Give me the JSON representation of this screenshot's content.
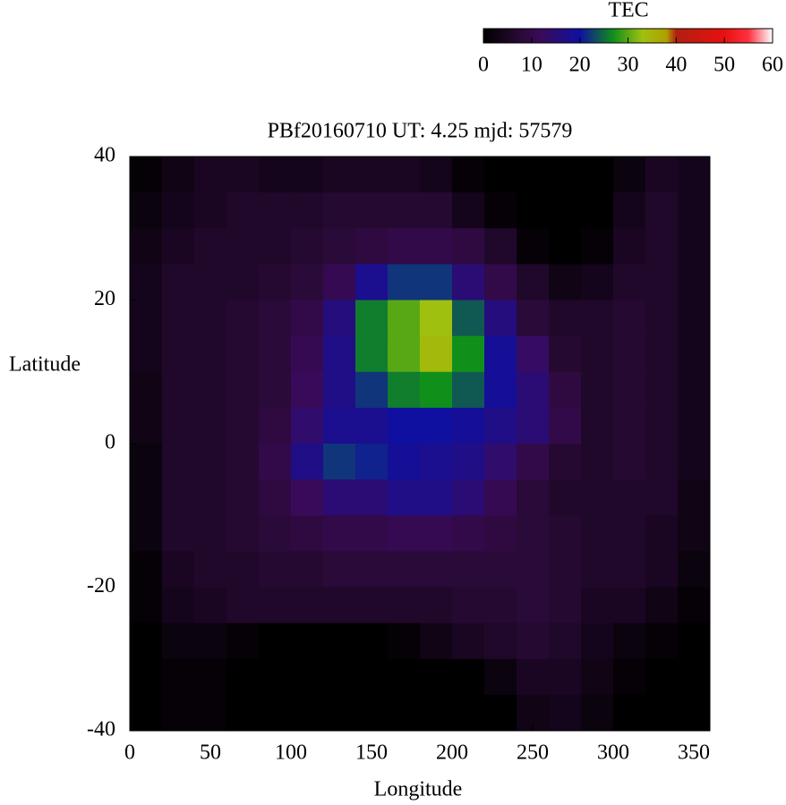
{
  "chart_data": {
    "type": "heatmap",
    "title": "PBf20160710  UT: 4.25  mjd: 57579",
    "xlabel": "Longitude",
    "ylabel": "Latitude",
    "colorbar_label": "TEC",
    "xlim": [
      0,
      360
    ],
    "xticks": [
      0,
      50,
      100,
      150,
      200,
      250,
      300,
      350
    ],
    "ylim": [
      -40,
      40
    ],
    "yticks": [
      -40,
      -20,
      0,
      20,
      40
    ],
    "clim": [
      0,
      60
    ],
    "cticks": [
      0,
      10,
      20,
      30,
      40,
      50,
      60
    ],
    "palette": [
      [
        0,
        "#000000"
      ],
      [
        8,
        "#2a0a38"
      ],
      [
        12,
        "#3a0a5a"
      ],
      [
        20,
        "#1010a0"
      ],
      [
        27,
        "#10901a"
      ],
      [
        33,
        "#a0c010"
      ],
      [
        38,
        "#b0a000"
      ],
      [
        40,
        "#b02010"
      ],
      [
        50,
        "#e81010"
      ],
      [
        55,
        "#ff3040"
      ],
      [
        60,
        "#ffffff"
      ]
    ],
    "x": [
      10,
      30,
      50,
      70,
      90,
      110,
      130,
      150,
      170,
      190,
      210,
      230,
      250,
      270,
      290,
      310,
      330,
      350
    ],
    "y": [
      37.5,
      32.5,
      27.5,
      22.5,
      17.5,
      12.5,
      7.5,
      2.5,
      -2.5,
      -7.5,
      -12.5,
      -17.5,
      -22.5,
      -27.5,
      -32.5,
      -37.5
    ],
    "z": [
      [
        1,
        3,
        5,
        5,
        4,
        4,
        5,
        5,
        5,
        4,
        1,
        0,
        0,
        0,
        0,
        2,
        5,
        4
      ],
      [
        2,
        4,
        5,
        6,
        6,
        6,
        7,
        7,
        7,
        7,
        4,
        1,
        0,
        0,
        0,
        4,
        6,
        4
      ],
      [
        3,
        5,
        6,
        6,
        6,
        7,
        8,
        9,
        10,
        10,
        9,
        6,
        1,
        0,
        1,
        5,
        6,
        4
      ],
      [
        4,
        6,
        6,
        6,
        7,
        8,
        11,
        18,
        22,
        22,
        15,
        10,
        6,
        3,
        4,
        6,
        6,
        4
      ],
      [
        4,
        6,
        6,
        7,
        8,
        10,
        16,
        26,
        30,
        33,
        24,
        16,
        8,
        6,
        6,
        7,
        6,
        4
      ],
      [
        4,
        6,
        6,
        7,
        8,
        11,
        17,
        26,
        30,
        34,
        27,
        19,
        13,
        7,
        6,
        7,
        6,
        4
      ],
      [
        3,
        6,
        6,
        7,
        8,
        12,
        17,
        22,
        26,
        27,
        24,
        19,
        15,
        9,
        6,
        7,
        6,
        4
      ],
      [
        3,
        6,
        6,
        7,
        9,
        14,
        18,
        18,
        20,
        20,
        19,
        17,
        15,
        10,
        6,
        7,
        6,
        4
      ],
      [
        2,
        6,
        6,
        7,
        10,
        17,
        22,
        21,
        19,
        18,
        17,
        14,
        10,
        7,
        6,
        7,
        6,
        4
      ],
      [
        2,
        6,
        6,
        7,
        9,
        12,
        15,
        15,
        17,
        17,
        15,
        11,
        8,
        6,
        6,
        6,
        6,
        3
      ],
      [
        2,
        6,
        6,
        7,
        8,
        9,
        10,
        10,
        11,
        11,
        10,
        9,
        8,
        7,
        6,
        6,
        5,
        3
      ],
      [
        1,
        5,
        6,
        6,
        7,
        7,
        8,
        8,
        8,
        8,
        8,
        8,
        8,
        7,
        6,
        6,
        5,
        2
      ],
      [
        1,
        4,
        5,
        6,
        6,
        6,
        6,
        6,
        6,
        6,
        7,
        7,
        8,
        7,
        5,
        5,
        3,
        1
      ],
      [
        0,
        2,
        2,
        1,
        0,
        0,
        0,
        0,
        1,
        3,
        5,
        6,
        7,
        6,
        4,
        2,
        1,
        0
      ],
      [
        0,
        1,
        1,
        0,
        0,
        0,
        0,
        0,
        0,
        0,
        0,
        2,
        5,
        5,
        3,
        1,
        0,
        0
      ],
      [
        0,
        1,
        1,
        0,
        0,
        0,
        0,
        0,
        0,
        0,
        0,
        0,
        3,
        4,
        2,
        0,
        0,
        0
      ]
    ]
  }
}
